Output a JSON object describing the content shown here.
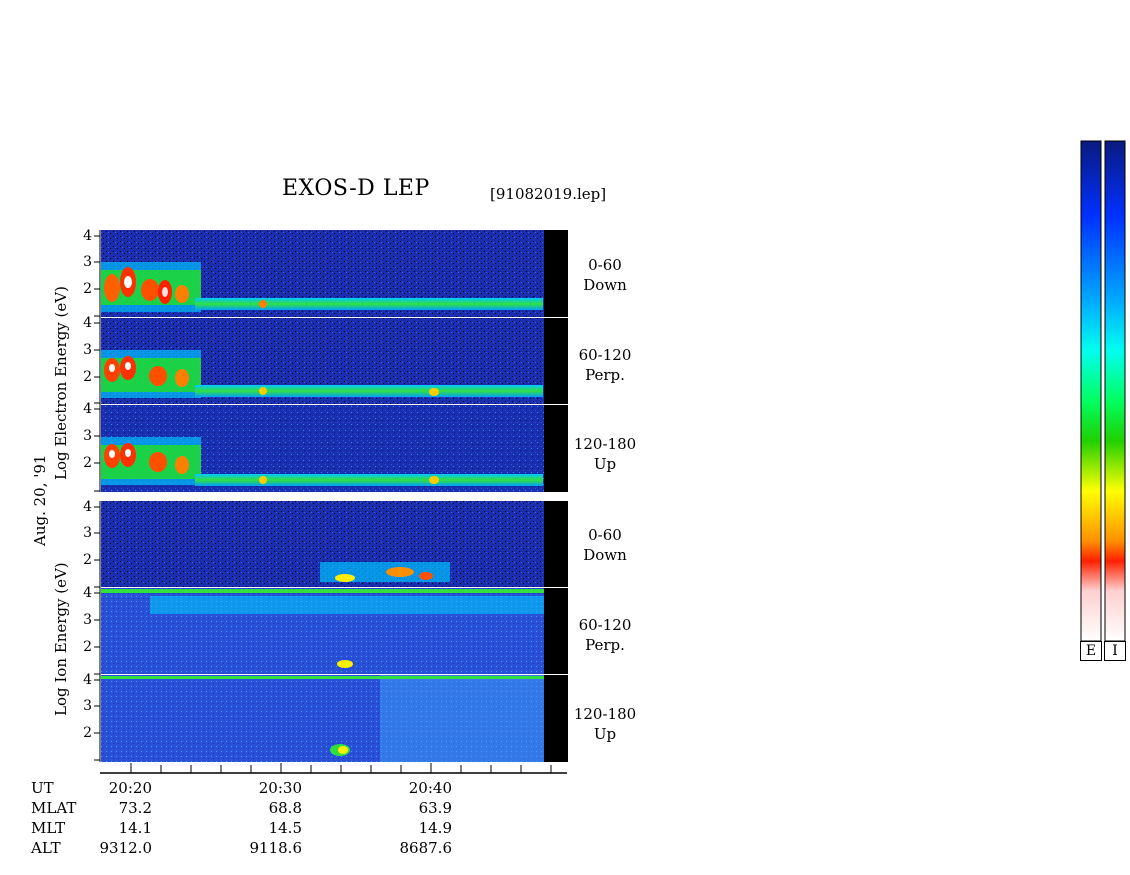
{
  "header": {
    "title": "EXOS-D LEP",
    "filename": "[91082019.lep]"
  },
  "date_label": "Aug. 20, '91",
  "panel_groups": [
    {
      "name": "electron",
      "ylabel": "Log  Electron  Energy (eV)"
    },
    {
      "name": "ion",
      "ylabel": "Log  Ion  Energy (eV)"
    }
  ],
  "pitch_labels": [
    {
      "range": "0-60",
      "dir": "Down"
    },
    {
      "range": "60-120",
      "dir": "Perp."
    },
    {
      "range": "120-180",
      "dir": "Up"
    },
    {
      "range": "0-60",
      "dir": "Down"
    },
    {
      "range": "60-120",
      "dir": "Perp."
    },
    {
      "range": "120-180",
      "dir": "Up"
    }
  ],
  "y_ticks": [
    "4",
    "3",
    "2"
  ],
  "x_axis": {
    "row_labels": [
      "UT",
      "MLAT",
      "MLT",
      "ALT"
    ],
    "columns": [
      {
        "UT": "20:20",
        "MLAT": "73.2",
        "MLT": "14.1",
        "ALT": "9312.0"
      },
      {
        "UT": "20:30",
        "MLAT": "68.8",
        "MLT": "14.5",
        "ALT": "9118.6"
      },
      {
        "UT": "20:40",
        "MLAT": "63.9",
        "MLT": "14.9",
        "ALT": "8687.6"
      }
    ]
  },
  "colorbar": {
    "labels": [
      "E",
      "I"
    ]
  },
  "colors": {
    "background_low": "#1a2fb0",
    "colorbar_stops": [
      "#0a1a80",
      "#0030ff",
      "#00aaff",
      "#00ffee",
      "#00ff60",
      "#20d000",
      "#ffff00",
      "#ff9000",
      "#ff2000",
      "#ffd0d0",
      "#ffffff"
    ]
  },
  "chart_data": {
    "type": "heatmap",
    "title": "EXOS-D LEP",
    "x_ticks": [
      "20:20",
      "20:30",
      "20:40"
    ],
    "y_ticks": [
      2,
      3,
      4
    ],
    "ylabel_electron": "Log  Electron  Energy (eV)",
    "ylabel_ion": "Log  Ion  Energy (eV)",
    "panels": [
      {
        "species": "electron",
        "pitch": "0-60 Down"
      },
      {
        "species": "electron",
        "pitch": "60-120 Perp."
      },
      {
        "species": "electron",
        "pitch": "120-180 Up"
      },
      {
        "species": "ion",
        "pitch": "0-60 Down"
      },
      {
        "species": "ion",
        "pitch": "60-120 Perp."
      },
      {
        "species": "ion",
        "pitch": "120-180 Up"
      }
    ]
  }
}
